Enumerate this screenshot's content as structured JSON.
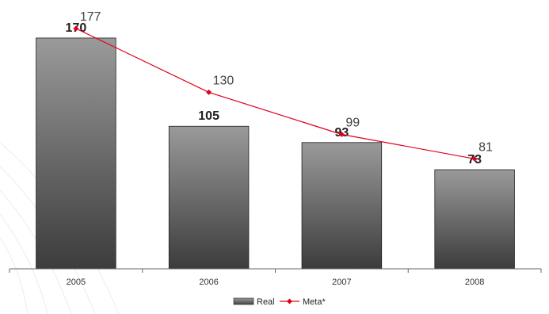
{
  "chart_data": {
    "type": "bar",
    "categories": [
      "2005",
      "2006",
      "2007",
      "2008"
    ],
    "series": [
      {
        "name": "Real",
        "type": "bar",
        "values": [
          170,
          105,
          93,
          73
        ],
        "color": "#555555"
      },
      {
        "name": "Meta*",
        "type": "line",
        "values": [
          177,
          130,
          99,
          81
        ],
        "color": "#e0001a"
      }
    ],
    "ylim": [
      0,
      198
    ],
    "grid": false,
    "legend": "bottom-center"
  }
}
